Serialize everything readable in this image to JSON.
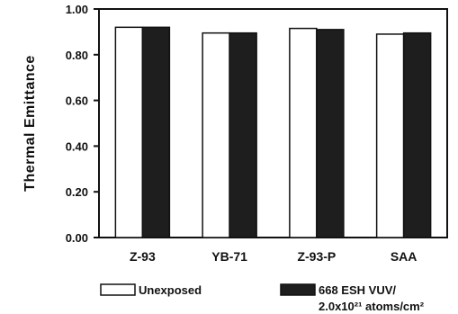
{
  "chart_data": {
    "type": "bar",
    "categories": [
      "Z-93",
      "YB-71",
      "Z-93-P",
      "SAA"
    ],
    "series": [
      {
        "name": "Unexposed",
        "values": [
          0.92,
          0.895,
          0.915,
          0.89
        ],
        "color": "#ffffff"
      },
      {
        "name": "668 ESH VUV/ 2.0x10²¹ atoms/cm²",
        "values": [
          0.92,
          0.895,
          0.91,
          0.895
        ],
        "color": "#1e1e1e"
      }
    ],
    "title": "",
    "xlabel": "",
    "ylabel": "Thermal Emittance",
    "ylim": [
      0,
      1
    ],
    "yticks": [
      "0.00",
      "0.20",
      "0.40",
      "0.60",
      "0.80",
      "1.00"
    ],
    "grid": false,
    "legend_position": "bottom",
    "legend": [
      {
        "lines": [
          "Unexposed"
        ]
      },
      {
        "lines": [
          "668 ESH VUV/",
          "2.0x10²¹ atoms/cm²"
        ]
      }
    ]
  }
}
